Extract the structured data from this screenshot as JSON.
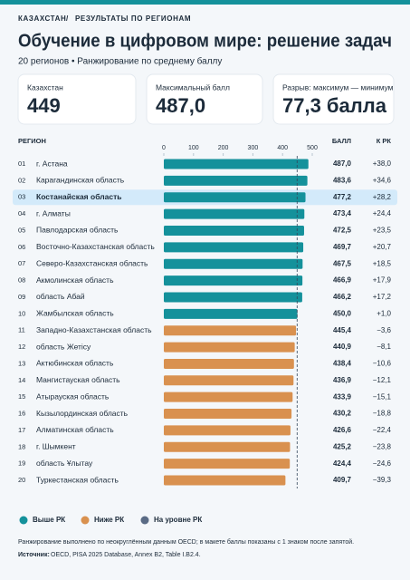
{
  "header": {
    "breadcrumb": [
      "КАЗАХСТАН",
      "/",
      "РЕЗУЛЬТАТЫ ПО РЕГИОНАМ"
    ],
    "title": "Обучение в цифровом мире: решение задач",
    "subtitle": "20 регионов • Ранжирование по среднему баллу"
  },
  "cards": [
    {
      "label": "Казахстан",
      "value": "449"
    },
    {
      "label": "Максимальный балл",
      "value": "487,0"
    },
    {
      "label": "Разрыв: максимум — минимум",
      "value": "77,3 балла"
    }
  ],
  "chart_data": {
    "type": "hbar",
    "column_headers": [
      "РЕГИОН",
      "БАЛЛ",
      "К РК"
    ],
    "ranks": [
      "01",
      "02",
      "03",
      "04",
      "05",
      "06",
      "07",
      "08",
      "09",
      "10",
      "11",
      "12",
      "13",
      "14",
      "15",
      "16",
      "17",
      "18",
      "19",
      "20"
    ],
    "categories": [
      "г. Астана",
      "Карагандинская область",
      "Костанайская область",
      "г. Алматы",
      "Павлодарская область",
      "Восточно-Казахстанская область",
      "Северо-Казахстанская область",
      "Акмолинская область",
      "область Абай",
      "Жамбылская область",
      "Западно-Казахстанская область",
      "область Жетісу",
      "Актюбинская область",
      "Мангистауская область",
      "Атырауская область",
      "Кызылординская область",
      "Алматинская область",
      "г. Шымкент",
      "область Ұлытау",
      "Туркестанская область"
    ],
    "values": [
      487.0,
      483.6,
      477.2,
      473.4,
      472.5,
      469.7,
      467.5,
      466.9,
      466.2,
      450.0,
      445.4,
      440.9,
      438.4,
      436.9,
      433.9,
      430.2,
      426.6,
      425.2,
      424.4,
      409.7
    ],
    "value_labels": [
      "487,0",
      "483,6",
      "477,2",
      "473,4",
      "472,5",
      "469,7",
      "467,5",
      "466,9",
      "466,2",
      "450,0",
      "445,4",
      "440,9",
      "438,4",
      "436,9",
      "433,9",
      "430,2",
      "426,6",
      "425,2",
      "424,4",
      "409,7"
    ],
    "diff_values": [
      38.0,
      34.6,
      28.2,
      24.4,
      23.5,
      20.7,
      18.5,
      17.9,
      17.2,
      1.0,
      -3.6,
      -8.1,
      -10.6,
      -12.1,
      -15.1,
      -18.8,
      -22.4,
      -23.8,
      -24.6,
      -39.3
    ],
    "diff_labels": [
      "+38,0",
      "+34,6",
      "+28,2",
      "+24,4",
      "+23,5",
      "+20,7",
      "+18,5",
      "+17,9",
      "+17,2",
      "+1,0",
      "−3,6",
      "−8,1",
      "−10,6",
      "−12,1",
      "−15,1",
      "−18,8",
      "−22,4",
      "−23,8",
      "−24,6",
      "−39,3"
    ],
    "diff_colors": {
      "positive": "#2a9d8f",
      "negative": "#d08a4a"
    },
    "reference_value": 449,
    "xlim": [
      0,
      500
    ],
    "xticks": [
      0,
      100,
      200,
      300,
      400,
      500
    ],
    "highlight_index": 2,
    "legend": [
      {
        "name": "Выше РК",
        "color": "#14919b"
      },
      {
        "name": "Ниже РК",
        "color": "#d9914f"
      },
      {
        "name": "На уровне РК",
        "color": "#5a6b85"
      }
    ]
  },
  "footer": {
    "note": "Ранжирование выполнено по неокруглённым данным OECD; в макете баллы показаны с 1 знаком после запятой.",
    "source_label": "Источник:",
    "source": "OECD, PISA 2025 Database, Annex B2, Table I.B2.4."
  }
}
